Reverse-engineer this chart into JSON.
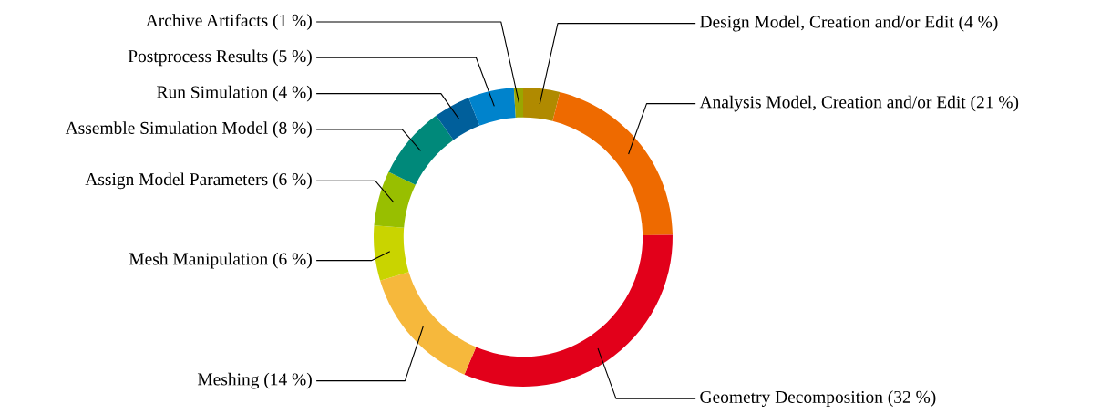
{
  "chart_data": {
    "type": "donut",
    "categories": [
      "Design Model, Creation and/or Edit (4 %)",
      "Analysis Model, Creation and/or Edit (21 %)",
      "Geometry Decomposition (32 %)",
      "Meshing (14 %)",
      "Mesh Manipulation (6 %)",
      "Assign Model Parameters (6 %)",
      "Assemble Simulation Model (8 %)",
      "Run Simulation (4 %)",
      "Postprocess Results (5 %)",
      "Archive Artifacts (1 %)"
    ],
    "values": [
      4,
      21,
      32,
      14,
      6,
      6,
      8,
      4,
      5,
      1
    ],
    "colors": [
      "#b08a00",
      "#ee6a00",
      "#e2001a",
      "#f6b83c",
      "#c9d400",
      "#98bf00",
      "#00897a",
      "#005f9b",
      "#0083cc",
      "#9aa600"
    ],
    "legend": false
  }
}
